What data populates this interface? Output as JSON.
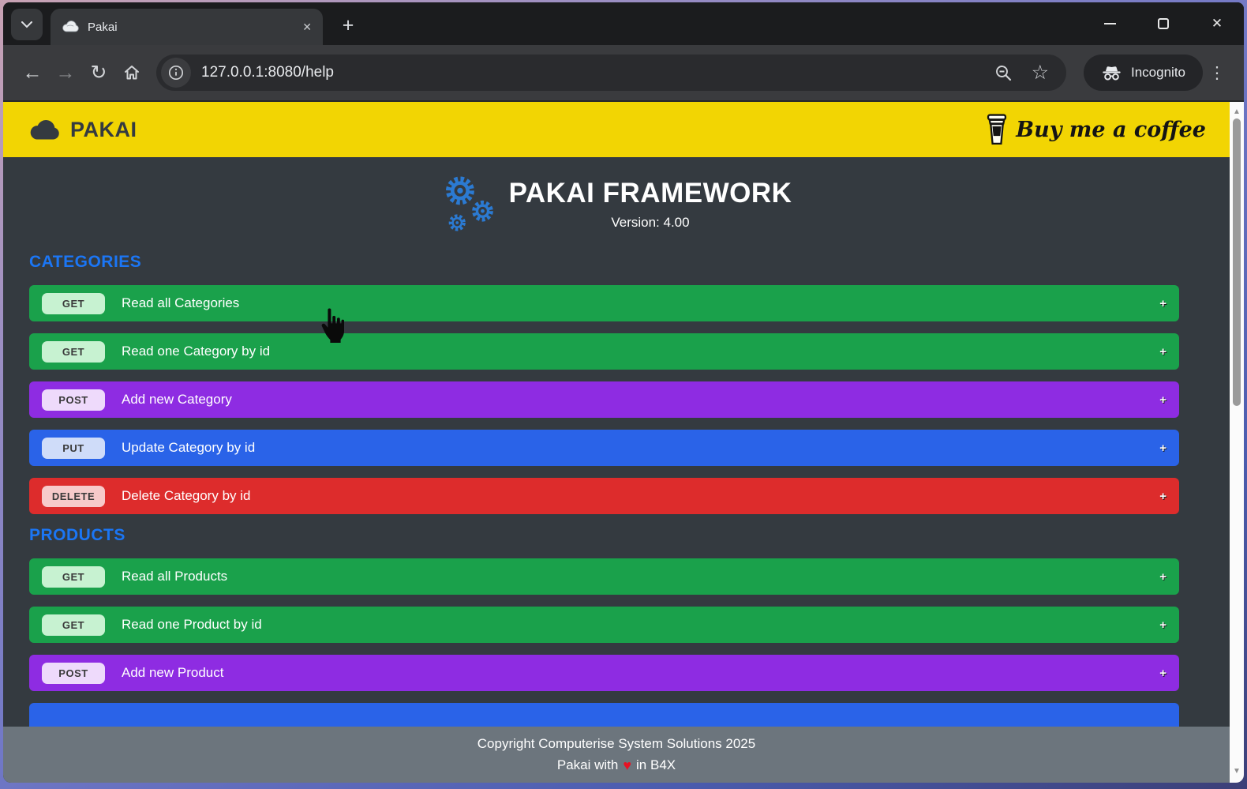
{
  "browser": {
    "tab": {
      "title": "Pakai",
      "favicon": "cloud-icon"
    },
    "url": "127.0.0.1:8080/help",
    "incognito_label": "Incognito"
  },
  "icons": {
    "back": "←",
    "forward": "→",
    "reload": "↻",
    "star": "☆",
    "kebab": "⋮",
    "new_tab": "+",
    "tab_close": "✕",
    "win_close": "✕",
    "scroll_up": "▲",
    "scroll_down": "▼",
    "row_expand": "+",
    "heart": "♥"
  },
  "site": {
    "header": {
      "brand": "PAKAI",
      "bmc_label": "Buy me a coffee"
    },
    "hero": {
      "title": "PAKAI FRAMEWORK",
      "version": "Version: 4.00"
    },
    "method_styles": {
      "GET": {
        "row": "#1aa14b",
        "badge": "#c7f2d1"
      },
      "POST": {
        "row": "#8e2ce2",
        "badge": "#eedafb"
      },
      "PUT": {
        "row": "#2a63e8",
        "badge": "#cfdcf9"
      },
      "DELETE": {
        "row": "#dd2c2c",
        "badge": "#f7caca"
      }
    },
    "sections": [
      {
        "title": "CATEGORIES",
        "rows": [
          {
            "method": "GET",
            "label": "Read all Categories"
          },
          {
            "method": "GET",
            "label": "Read one Category by id"
          },
          {
            "method": "POST",
            "label": "Add new Category"
          },
          {
            "method": "PUT",
            "label": "Update Category by id"
          },
          {
            "method": "DELETE",
            "label": "Delete Category by id"
          }
        ]
      },
      {
        "title": "PRODUCTS",
        "rows": [
          {
            "method": "GET",
            "label": "Read all Products"
          },
          {
            "method": "GET",
            "label": "Read one Product by id"
          },
          {
            "method": "POST",
            "label": "Add new Product"
          }
        ]
      }
    ],
    "partial_row": {
      "color": "#2a63e8"
    },
    "footer": {
      "line1": "Copyright Computerise System Solutions 2025",
      "line2_prefix": "Pakai with",
      "line2_suffix": "in B4X"
    }
  }
}
